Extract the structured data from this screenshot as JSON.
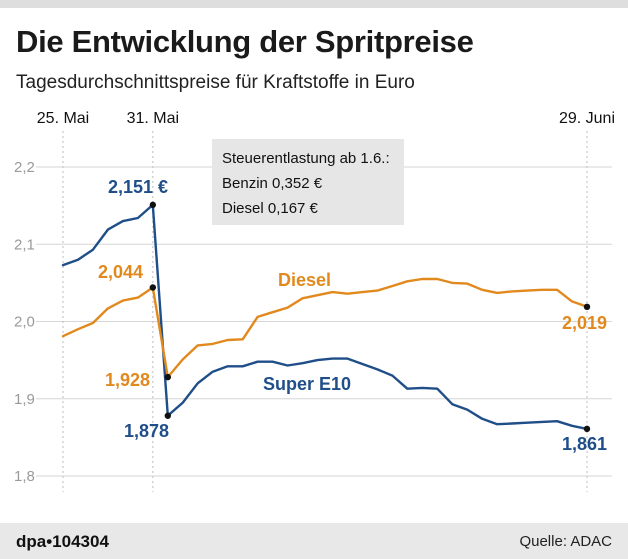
{
  "title": "Die Entwicklung der Spritpreise",
  "subtitle": "Tagesdurchschnittspreise für Kraftstoffe in Euro",
  "footer": {
    "logo": "dpa•104304",
    "source": "Quelle: ADAC"
  },
  "annotation": {
    "lines": [
      "Steuerentlastung ab 1.6.:",
      "Benzin 0,352 €",
      "Diesel 0,167 €"
    ]
  },
  "chart_data": {
    "type": "line",
    "title": "Die Entwicklung der Spritpreise",
    "subtitle": "Tagesdurchschnittspreise für Kraftstoffe in Euro",
    "xlabel": "",
    "ylabel": "",
    "x_range": [
      0,
      35
    ],
    "ylim": [
      1.8,
      2.2
    ],
    "yticks": [
      1.8,
      1.9,
      2.0,
      2.1,
      2.2
    ],
    "ytick_labels": [
      "1,8",
      "1,9",
      "2,0",
      "2,1",
      "2,2"
    ],
    "xticks": [
      {
        "x": 0,
        "label": "25. Mai"
      },
      {
        "x": 6,
        "label": "31. Mai"
      },
      {
        "x": 35,
        "label": "29. Juni"
      }
    ],
    "x": [
      0,
      1,
      2,
      3,
      4,
      5,
      6,
      7,
      8,
      9,
      10,
      11,
      12,
      13,
      14,
      15,
      16,
      17,
      18,
      19,
      20,
      21,
      22,
      23,
      24,
      25,
      26,
      27,
      28,
      29,
      30,
      31,
      32,
      33,
      34,
      35
    ],
    "series": [
      {
        "name": "Super E10",
        "color": "#1f4e89",
        "values": [
          2.073,
          2.08,
          2.093,
          2.119,
          2.13,
          2.134,
          2.151,
          1.878,
          1.895,
          1.92,
          1.935,
          1.942,
          1.942,
          1.948,
          1.948,
          1.943,
          1.946,
          1.95,
          1.952,
          1.952,
          1.945,
          1.938,
          1.93,
          1.913,
          1.914,
          1.913,
          1.893,
          1.886,
          1.874,
          1.867,
          1.868,
          1.869,
          1.87,
          1.871,
          1.865,
          1.861
        ],
        "labels": [
          {
            "text": "Super E10",
            "position": "mid-series"
          },
          {
            "text": "2,151 €",
            "position": "peak"
          },
          {
            "text": "1,878",
            "position": "drop"
          },
          {
            "text": "1,861",
            "position": "end"
          }
        ]
      },
      {
        "name": "Diesel",
        "color": "#e2891e",
        "values": [
          1.981,
          1.99,
          1.998,
          2.017,
          2.027,
          2.031,
          2.044,
          1.928,
          1.951,
          1.969,
          1.971,
          1.976,
          1.977,
          2.006,
          2.012,
          2.018,
          2.03,
          2.034,
          2.038,
          2.036,
          2.038,
          2.04,
          2.046,
          2.052,
          2.055,
          2.055,
          2.05,
          2.049,
          2.041,
          2.037,
          2.039,
          2.04,
          2.041,
          2.041,
          2.026,
          2.019
        ],
        "labels": [
          {
            "text": "Diesel",
            "position": "mid-series"
          },
          {
            "text": "2,044",
            "position": "peak"
          },
          {
            "text": "1,928",
            "position": "drop"
          },
          {
            "text": "2,019",
            "position": "end"
          }
        ]
      }
    ],
    "grid": true
  }
}
